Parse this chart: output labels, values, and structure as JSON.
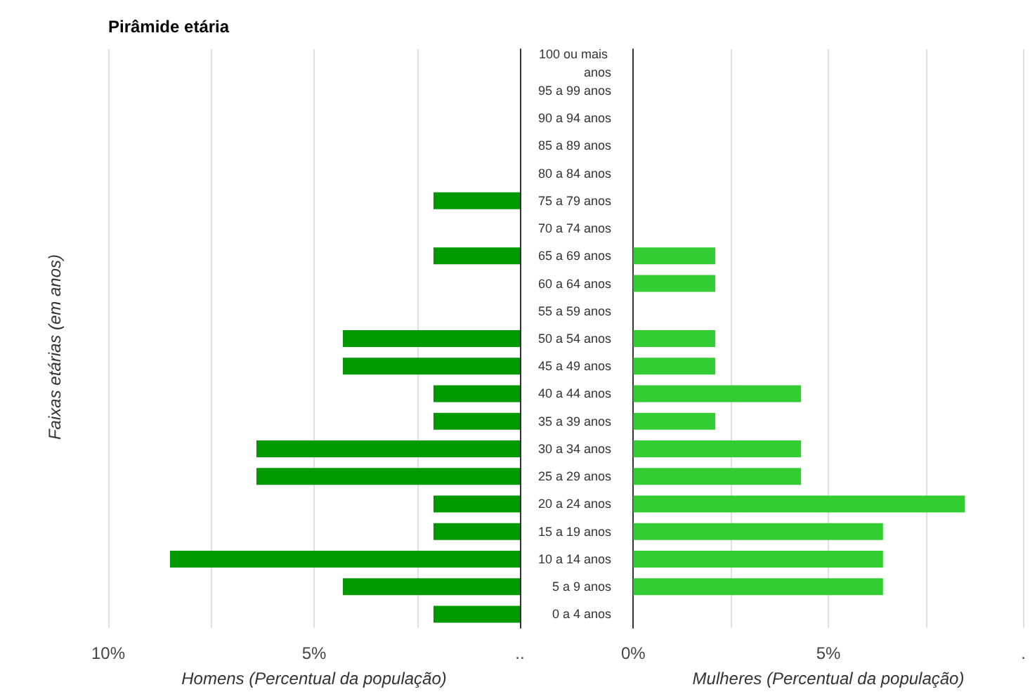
{
  "chart_data": [
    {
      "type": "bar",
      "orientation": "horizontal",
      "title": "Pirâmide etária",
      "ylabel": "Faixas etárias (em anos)",
      "xlabel": "Homens (Percentual da população)",
      "categories": [
        "100 ou mais anos",
        "95 a 99 anos",
        "90 a 94 anos",
        "85 a 89 anos",
        "80 a 84 anos",
        "75 a 79 anos",
        "70 a 74 anos",
        "65 a 69 anos",
        "60 a 64 anos",
        "55 a 59 anos",
        "50 a 54 anos",
        "45 a 49 anos",
        "40 a 44 anos",
        "35 a 39 anos",
        "30 a 34 anos",
        "25 a 29 anos",
        "20 a 24 anos",
        "15 a 19 anos",
        "10 a 14 anos",
        "5 a 9 anos",
        "0 a 4 anos"
      ],
      "series": [
        {
          "color": "#009900",
          "values": [
            0,
            0,
            0,
            0,
            0,
            2.1,
            0,
            2.1,
            0,
            0,
            4.3,
            4.3,
            2.1,
            2.1,
            6.4,
            6.4,
            2.1,
            2.1,
            8.5,
            4.3,
            2.1
          ]
        }
      ],
      "xlim": [
        10,
        0
      ],
      "xticks": [
        {
          "value": 10,
          "label": "10%"
        },
        {
          "value": 7.5,
          "label": null
        },
        {
          "value": 5,
          "label": "5%"
        },
        {
          "value": 2.5,
          "label": null
        },
        {
          "value": 0,
          "label": ".."
        }
      ],
      "grid": "x"
    },
    {
      "type": "bar",
      "orientation": "horizontal",
      "xlabel": "Mulheres (Percentual da população)",
      "categories": [
        "100 ou mais anos",
        "95 a 99 anos",
        "90 a 94 anos",
        "85 a 89 anos",
        "80 a 84 anos",
        "75 a 79 anos",
        "70 a 74 anos",
        "65 a 69 anos",
        "60 a 64 anos",
        "55 a 59 anos",
        "50 a 54 anos",
        "45 a 49 anos",
        "40 a 44 anos",
        "35 a 39 anos",
        "30 a 34 anos",
        "25 a 29 anos",
        "20 a 24 anos",
        "15 a 19 anos",
        "10 a 14 anos",
        "5 a 9 anos",
        "0 a 4 anos"
      ],
      "series": [
        {
          "color": "#33cc33",
          "values": [
            0,
            0,
            0,
            0,
            0,
            0,
            0,
            2.1,
            2.1,
            0,
            2.1,
            2.1,
            4.3,
            2.1,
            4.3,
            4.3,
            8.5,
            6.4,
            6.4,
            6.4,
            0
          ]
        }
      ],
      "xlim": [
        0,
        10
      ],
      "xticks": [
        {
          "value": 0,
          "label": "0%"
        },
        {
          "value": 2.5,
          "label": null
        },
        {
          "value": 5,
          "label": "5%"
        },
        {
          "value": 7.5,
          "label": null
        },
        {
          "value": 10,
          "label": "."
        }
      ],
      "grid": "x",
      "tick_labels": "x"
    }
  ]
}
